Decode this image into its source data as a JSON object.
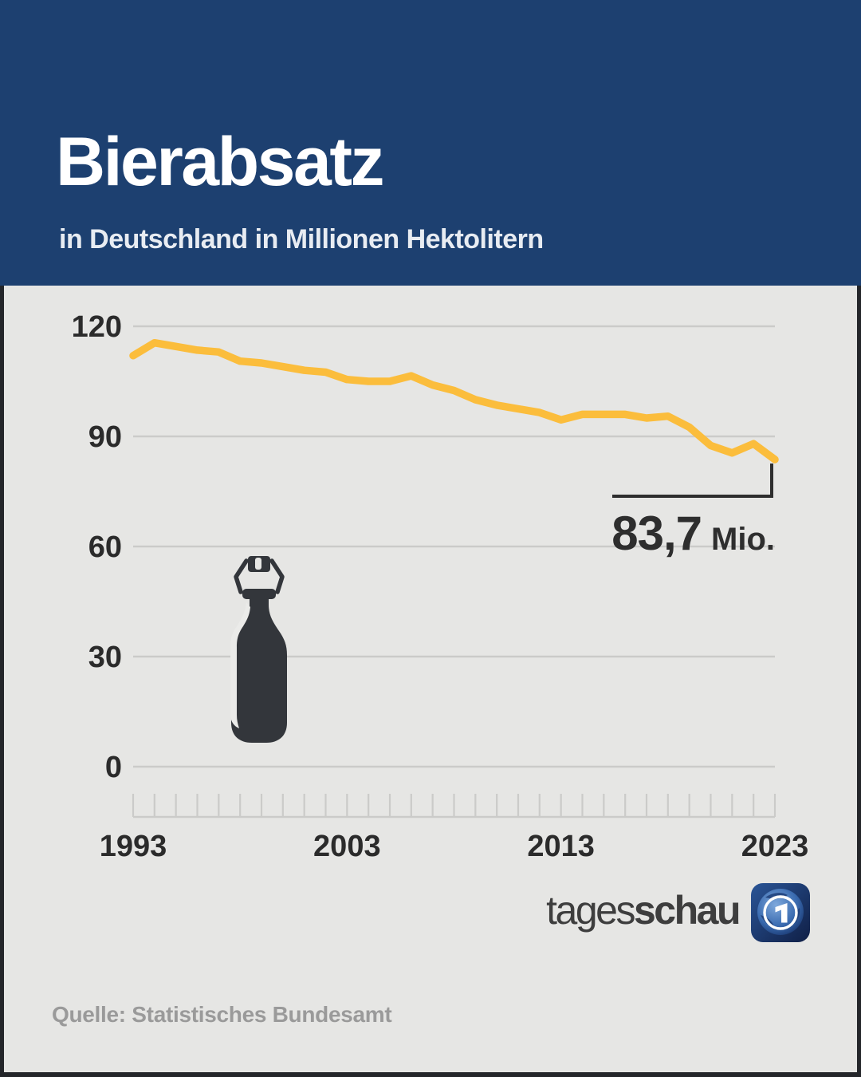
{
  "header": {
    "title": "Bierabsatz",
    "subtitle": "in Deutschland in Millionen Hektolitern"
  },
  "chart_data": {
    "type": "line",
    "title": "Bierabsatz in Deutschland in Millionen Hektolitern",
    "unit": "Millionen Hektoliter",
    "x": [
      1993,
      1994,
      1995,
      1996,
      1997,
      1998,
      1999,
      2000,
      2001,
      2002,
      2003,
      2004,
      2005,
      2006,
      2007,
      2008,
      2009,
      2010,
      2011,
      2012,
      2013,
      2014,
      2015,
      2016,
      2017,
      2018,
      2019,
      2020,
      2021,
      2022,
      2023
    ],
    "values": [
      112.0,
      115.5,
      114.5,
      113.5,
      113.0,
      110.5,
      110.0,
      109.0,
      108.0,
      107.5,
      105.5,
      105.0,
      105.0,
      106.5,
      104.0,
      102.5,
      100.0,
      98.5,
      97.5,
      96.5,
      94.5,
      96.0,
      96.0,
      96.0,
      95.0,
      95.5,
      92.5,
      87.5,
      85.5,
      88.0,
      83.7
    ],
    "ylim": [
      0,
      120
    ],
    "y_ticks": [
      120,
      90,
      60,
      30,
      0
    ],
    "y_tick_labels": [
      "120",
      "90",
      "60",
      "30",
      "0"
    ],
    "x_tick_years": [
      1993,
      2003,
      2013,
      2023
    ],
    "x_tick_labels": [
      "1993",
      "2003",
      "2013",
      "2023"
    ],
    "grid": "horizontal",
    "legend": "none",
    "annotation": {
      "value_text": "83,7",
      "unit_text": "Mio.",
      "full_label": "83,7 Mio.",
      "year": 2023
    }
  },
  "footer": {
    "brand_light": "tages",
    "brand_bold": "schau",
    "source": "Quelle: Statistisches Bundesamt"
  },
  "colors": {
    "header_bg": "#1d4070",
    "body_bg": "#e6e6e4",
    "line": "#fbbd3c",
    "grid": "#cbcbc9",
    "axis_text": "#2b2b2b",
    "annotation": "#2e2e2e",
    "source_text": "#9a9a9a",
    "bottle": "#33363b",
    "frame": "#24262a"
  }
}
